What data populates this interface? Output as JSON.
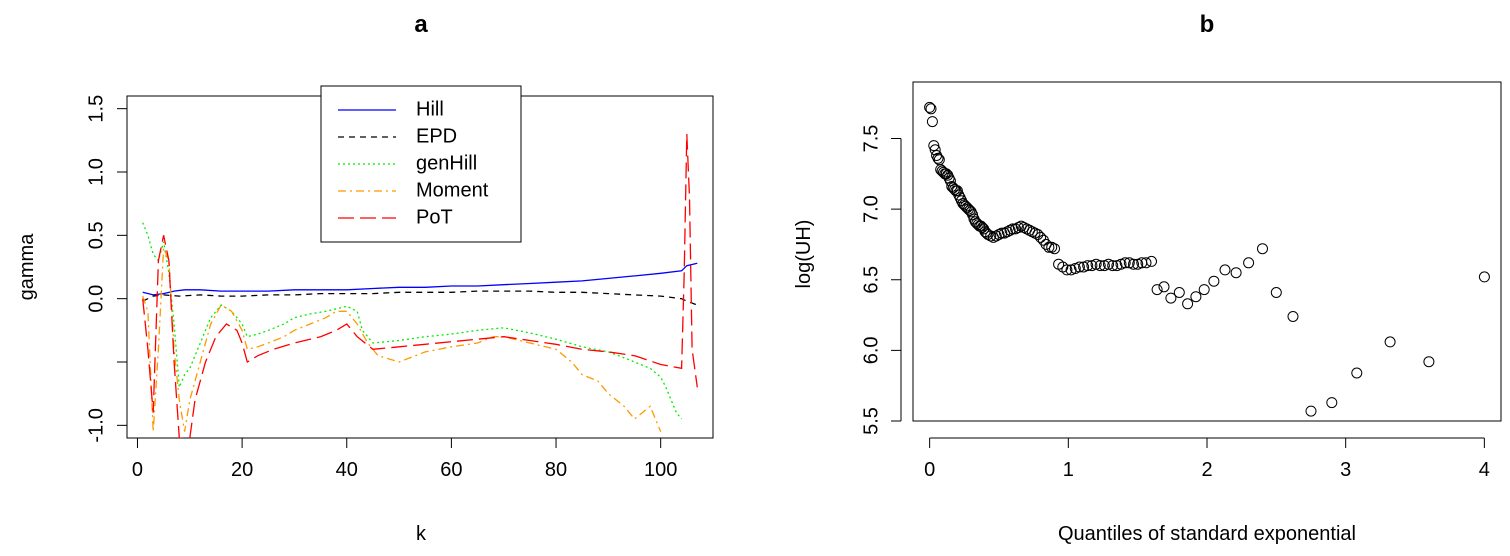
{
  "chart_data": [
    {
      "type": "line",
      "title": "a",
      "xlabel": "k",
      "ylabel": "gamma",
      "xlim": [
        -2,
        110
      ],
      "ylim": [
        -1.1,
        1.6
      ],
      "x_ticks": [
        0,
        20,
        40,
        60,
        80,
        100
      ],
      "x_tick_labels": [
        "0",
        "20",
        "40",
        "60",
        "80",
        "100"
      ],
      "y_ticks": [
        -1.0,
        -0.5,
        0.0,
        0.5,
        1.0,
        1.5
      ],
      "y_tick_labels": [
        "-1.0",
        "",
        "0.0",
        "0.5",
        "1.0",
        "1.5"
      ],
      "grid": false,
      "legend": "top-center",
      "series": [
        {
          "name": "Hill",
          "color": "#0000ff",
          "dash": "solid",
          "points": [
            [
              1,
              0.05
            ],
            [
              3,
              0.03
            ],
            [
              5,
              0.04
            ],
            [
              7,
              0.06
            ],
            [
              9,
              0.07
            ],
            [
              12,
              0.07
            ],
            [
              16,
              0.06
            ],
            [
              20,
              0.06
            ],
            [
              25,
              0.06
            ],
            [
              30,
              0.07
            ],
            [
              35,
              0.07
            ],
            [
              40,
              0.07
            ],
            [
              45,
              0.08
            ],
            [
              50,
              0.09
            ],
            [
              55,
              0.09
            ],
            [
              60,
              0.1
            ],
            [
              65,
              0.1
            ],
            [
              70,
              0.11
            ],
            [
              75,
              0.12
            ],
            [
              80,
              0.13
            ],
            [
              85,
              0.14
            ],
            [
              90,
              0.16
            ],
            [
              95,
              0.18
            ],
            [
              100,
              0.2
            ],
            [
              104,
              0.22
            ],
            [
              105,
              0.26
            ],
            [
              107,
              0.28
            ]
          ]
        },
        {
          "name": "EPD",
          "color": "#000000",
          "dash": "short",
          "points": [
            [
              1,
              -0.02
            ],
            [
              3,
              0.02
            ],
            [
              5,
              0.03
            ],
            [
              8,
              0.02
            ],
            [
              12,
              0.03
            ],
            [
              16,
              0.02
            ],
            [
              20,
              0.02
            ],
            [
              25,
              0.03
            ],
            [
              30,
              0.03
            ],
            [
              35,
              0.04
            ],
            [
              40,
              0.04
            ],
            [
              45,
              0.04
            ],
            [
              50,
              0.05
            ],
            [
              55,
              0.05
            ],
            [
              60,
              0.05
            ],
            [
              65,
              0.06
            ],
            [
              70,
              0.06
            ],
            [
              75,
              0.06
            ],
            [
              80,
              0.05
            ],
            [
              85,
              0.05
            ],
            [
              90,
              0.04
            ],
            [
              95,
              0.03
            ],
            [
              100,
              0.02
            ],
            [
              104,
              0.0
            ],
            [
              105,
              -0.02
            ],
            [
              107,
              -0.05
            ]
          ]
        },
        {
          "name": "genHill",
          "color": "#00ee00",
          "dash": "dot",
          "points": [
            [
              1,
              0.6
            ],
            [
              2,
              0.5
            ],
            [
              3,
              0.35
            ],
            [
              4,
              0.3
            ],
            [
              5,
              0.45
            ],
            [
              6,
              0.2
            ],
            [
              7,
              -0.2
            ],
            [
              8,
              -0.7
            ],
            [
              9,
              -0.6
            ],
            [
              10,
              -0.55
            ],
            [
              12,
              -0.35
            ],
            [
              14,
              -0.15
            ],
            [
              16,
              -0.05
            ],
            [
              18,
              -0.1
            ],
            [
              19,
              -0.15
            ],
            [
              20,
              -0.2
            ],
            [
              21,
              -0.3
            ],
            [
              23,
              -0.28
            ],
            [
              25,
              -0.25
            ],
            [
              28,
              -0.2
            ],
            [
              30,
              -0.15
            ],
            [
              33,
              -0.12
            ],
            [
              36,
              -0.1
            ],
            [
              38,
              -0.08
            ],
            [
              40,
              -0.06
            ],
            [
              42,
              -0.1
            ],
            [
              43,
              -0.25
            ],
            [
              45,
              -0.35
            ],
            [
              50,
              -0.33
            ],
            [
              55,
              -0.3
            ],
            [
              60,
              -0.28
            ],
            [
              65,
              -0.25
            ],
            [
              70,
              -0.23
            ],
            [
              75,
              -0.27
            ],
            [
              78,
              -0.3
            ],
            [
              80,
              -0.32
            ],
            [
              85,
              -0.38
            ],
            [
              90,
              -0.42
            ],
            [
              92,
              -0.45
            ],
            [
              95,
              -0.5
            ],
            [
              98,
              -0.55
            ],
            [
              100,
              -0.62
            ],
            [
              101,
              -0.7
            ],
            [
              102,
              -0.8
            ],
            [
              103,
              -0.9
            ],
            [
              104,
              -0.95
            ]
          ]
        },
        {
          "name": "Moment",
          "color": "#ff9900",
          "dash": "dashdot",
          "points": [
            [
              1,
              0.02
            ],
            [
              2,
              -0.1
            ],
            [
              3,
              -1.05
            ],
            [
              4,
              -0.4
            ],
            [
              5,
              0.4
            ],
            [
              6,
              0.3
            ],
            [
              7,
              -0.4
            ],
            [
              8,
              -0.8
            ],
            [
              9,
              -1.05
            ],
            [
              10,
              -0.8
            ],
            [
              12,
              -0.5
            ],
            [
              14,
              -0.2
            ],
            [
              16,
              -0.05
            ],
            [
              18,
              -0.1
            ],
            [
              20,
              -0.25
            ],
            [
              21,
              -0.4
            ],
            [
              23,
              -0.38
            ],
            [
              25,
              -0.35
            ],
            [
              28,
              -0.3
            ],
            [
              30,
              -0.25
            ],
            [
              33,
              -0.2
            ],
            [
              36,
              -0.15
            ],
            [
              38,
              -0.1
            ],
            [
              40,
              -0.1
            ],
            [
              42,
              -0.2
            ],
            [
              44,
              -0.35
            ],
            [
              46,
              -0.45
            ],
            [
              50,
              -0.5
            ],
            [
              55,
              -0.42
            ],
            [
              60,
              -0.38
            ],
            [
              65,
              -0.35
            ],
            [
              68,
              -0.3
            ],
            [
              70,
              -0.3
            ],
            [
              75,
              -0.35
            ],
            [
              80,
              -0.4
            ],
            [
              83,
              -0.5
            ],
            [
              85,
              -0.6
            ],
            [
              88,
              -0.65
            ],
            [
              90,
              -0.75
            ],
            [
              93,
              -0.85
            ],
            [
              95,
              -0.95
            ],
            [
              98,
              -0.85
            ],
            [
              100,
              -1.05
            ]
          ]
        },
        {
          "name": "PoT",
          "color": "#ff0000",
          "dash": "long",
          "points": [
            [
              1,
              0.0
            ],
            [
              2,
              -0.4
            ],
            [
              3,
              -0.9
            ],
            [
              4,
              0.3
            ],
            [
              5,
              0.5
            ],
            [
              6,
              0.3
            ],
            [
              7,
              -0.5
            ],
            [
              8,
              -1.1
            ],
            [
              10,
              -1.1
            ],
            [
              11,
              -0.8
            ],
            [
              13,
              -0.5
            ],
            [
              15,
              -0.3
            ],
            [
              17,
              -0.2
            ],
            [
              19,
              -0.25
            ],
            [
              20,
              -0.35
            ],
            [
              21,
              -0.5
            ],
            [
              23,
              -0.45
            ],
            [
              26,
              -0.4
            ],
            [
              30,
              -0.35
            ],
            [
              35,
              -0.3
            ],
            [
              38,
              -0.25
            ],
            [
              40,
              -0.2
            ],
            [
              42,
              -0.3
            ],
            [
              45,
              -0.4
            ],
            [
              50,
              -0.38
            ],
            [
              55,
              -0.36
            ],
            [
              60,
              -0.34
            ],
            [
              65,
              -0.32
            ],
            [
              70,
              -0.3
            ],
            [
              75,
              -0.33
            ],
            [
              80,
              -0.36
            ],
            [
              85,
              -0.4
            ],
            [
              90,
              -0.42
            ],
            [
              95,
              -0.45
            ],
            [
              100,
              -0.52
            ],
            [
              104,
              -0.55
            ],
            [
              104.5,
              0.2
            ],
            [
              105,
              1.3
            ],
            [
              105.5,
              0.8
            ],
            [
              106,
              -0.4
            ],
            [
              107,
              -0.7
            ]
          ]
        }
      ]
    },
    {
      "type": "scatter",
      "title": "b",
      "xlabel": "Quantiles of standard exponential",
      "ylabel": "log(UH)",
      "xlim": [
        -0.12,
        4.12
      ],
      "ylim": [
        5.5,
        7.9
      ],
      "x_ticks": [
        0,
        1,
        2,
        3,
        4
      ],
      "x_tick_labels": [
        "0",
        "1",
        "2",
        "3",
        "4"
      ],
      "y_ticks": [
        5.5,
        6.0,
        6.5,
        7.0,
        7.5
      ],
      "y_tick_labels": [
        "5.5",
        "6.0",
        "6.5",
        "7.0",
        "7.5"
      ],
      "grid": false,
      "points": [
        [
          0.0,
          7.72
        ],
        [
          0.01,
          7.71
        ],
        [
          0.02,
          7.62
        ],
        [
          0.03,
          7.45
        ],
        [
          0.04,
          7.42
        ],
        [
          0.05,
          7.38
        ],
        [
          0.06,
          7.36
        ],
        [
          0.07,
          7.35
        ],
        [
          0.08,
          7.28
        ],
        [
          0.09,
          7.27
        ],
        [
          0.1,
          7.26
        ],
        [
          0.11,
          7.25
        ],
        [
          0.12,
          7.25
        ],
        [
          0.13,
          7.24
        ],
        [
          0.14,
          7.22
        ],
        [
          0.15,
          7.2
        ],
        [
          0.16,
          7.16
        ],
        [
          0.17,
          7.15
        ],
        [
          0.18,
          7.14
        ],
        [
          0.19,
          7.13
        ],
        [
          0.2,
          7.13
        ],
        [
          0.21,
          7.1
        ],
        [
          0.22,
          7.08
        ],
        [
          0.23,
          7.06
        ],
        [
          0.24,
          7.04
        ],
        [
          0.25,
          7.03
        ],
        [
          0.26,
          7.02
        ],
        [
          0.27,
          7.01
        ],
        [
          0.28,
          7.0
        ],
        [
          0.29,
          6.99
        ],
        [
          0.3,
          6.98
        ],
        [
          0.31,
          6.96
        ],
        [
          0.32,
          6.93
        ],
        [
          0.33,
          6.91
        ],
        [
          0.34,
          6.9
        ],
        [
          0.35,
          6.89
        ],
        [
          0.36,
          6.88
        ],
        [
          0.37,
          6.88
        ],
        [
          0.38,
          6.87
        ],
        [
          0.39,
          6.86
        ],
        [
          0.4,
          6.84
        ],
        [
          0.41,
          6.83
        ],
        [
          0.42,
          6.82
        ],
        [
          0.44,
          6.81
        ],
        [
          0.46,
          6.8
        ],
        [
          0.48,
          6.81
        ],
        [
          0.5,
          6.82
        ],
        [
          0.52,
          6.83
        ],
        [
          0.54,
          6.83
        ],
        [
          0.56,
          6.84
        ],
        [
          0.58,
          6.85
        ],
        [
          0.6,
          6.86
        ],
        [
          0.62,
          6.86
        ],
        [
          0.64,
          6.87
        ],
        [
          0.66,
          6.88
        ],
        [
          0.68,
          6.87
        ],
        [
          0.7,
          6.86
        ],
        [
          0.72,
          6.85
        ],
        [
          0.74,
          6.84
        ],
        [
          0.76,
          6.83
        ],
        [
          0.78,
          6.82
        ],
        [
          0.8,
          6.8
        ],
        [
          0.82,
          6.78
        ],
        [
          0.84,
          6.75
        ],
        [
          0.86,
          6.73
        ],
        [
          0.88,
          6.73
        ],
        [
          0.9,
          6.72
        ],
        [
          0.93,
          6.61
        ],
        [
          0.96,
          6.59
        ],
        [
          0.99,
          6.57
        ],
        [
          1.02,
          6.57
        ],
        [
          1.05,
          6.58
        ],
        [
          1.08,
          6.59
        ],
        [
          1.11,
          6.59
        ],
        [
          1.14,
          6.6
        ],
        [
          1.17,
          6.6
        ],
        [
          1.2,
          6.61
        ],
        [
          1.23,
          6.6
        ],
        [
          1.26,
          6.6
        ],
        [
          1.29,
          6.61
        ],
        [
          1.32,
          6.6
        ],
        [
          1.35,
          6.6
        ],
        [
          1.38,
          6.61
        ],
        [
          1.41,
          6.62
        ],
        [
          1.44,
          6.62
        ],
        [
          1.47,
          6.61
        ],
        [
          1.5,
          6.61
        ],
        [
          1.53,
          6.62
        ],
        [
          1.56,
          6.62
        ],
        [
          1.6,
          6.63
        ],
        [
          1.64,
          6.43
        ],
        [
          1.69,
          6.45
        ],
        [
          1.74,
          6.37
        ],
        [
          1.8,
          6.41
        ],
        [
          1.86,
          6.33
        ],
        [
          1.92,
          6.38
        ],
        [
          1.98,
          6.43
        ],
        [
          2.05,
          6.49
        ],
        [
          2.13,
          6.57
        ],
        [
          2.21,
          6.55
        ],
        [
          2.3,
          6.62
        ],
        [
          2.4,
          6.72
        ],
        [
          2.5,
          6.41
        ],
        [
          2.62,
          6.24
        ],
        [
          2.75,
          5.57
        ],
        [
          2.9,
          5.63
        ],
        [
          3.08,
          5.84
        ],
        [
          3.32,
          6.06
        ],
        [
          3.6,
          5.92
        ],
        [
          4.0,
          6.52
        ]
      ]
    }
  ]
}
